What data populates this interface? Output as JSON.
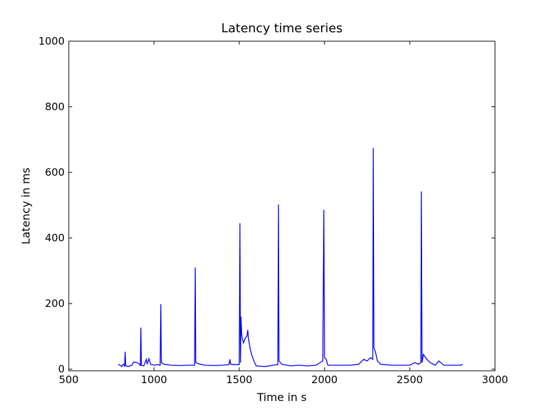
{
  "chart_data": {
    "type": "line",
    "title": "Latency time series",
    "x_label": "Time in s",
    "y_label": "Latency in ms",
    "xlim": [
      500,
      3000
    ],
    "xticks": [
      500,
      1000,
      1500,
      2000,
      2500,
      3000
    ],
    "ylim": [
      -5,
      1000
    ],
    "yticks": [
      0,
      200,
      400,
      600,
      800,
      1000
    ],
    "series": [
      {
        "color": "#0000ff",
        "x": [
          790,
          800,
          810,
          820,
          828,
          831,
          834,
          850,
          870,
          880,
          900,
          915,
          920,
          923,
          926,
          940,
          955,
          960,
          970,
          980,
          1000,
          1020,
          1036,
          1040,
          1043,
          1060,
          1100,
          1150,
          1200,
          1238,
          1242,
          1245,
          1270,
          1300,
          1350,
          1400,
          1440,
          1445,
          1450,
          1480,
          1500,
          1504,
          1507,
          1510,
          1515,
          1525,
          1535,
          1545,
          1550,
          1555,
          1565,
          1575,
          1590,
          1600,
          1650,
          1700,
          1726,
          1730,
          1733,
          1750,
          1800,
          1850,
          1900,
          1950,
          1990,
          1996,
          2000,
          2010,
          2020,
          2050,
          2100,
          2150,
          2200,
          2230,
          2250,
          2270,
          2283,
          2286,
          2290,
          2300,
          2310,
          2330,
          2400,
          2450,
          2500,
          2530,
          2550,
          2565,
          2568,
          2572,
          2580,
          2600,
          2620,
          2650,
          2670,
          2700,
          2750,
          2800,
          2810
        ],
        "values": [
          15,
          12,
          8,
          15,
          10,
          53,
          10,
          8,
          12,
          22,
          20,
          15,
          10,
          127,
          12,
          10,
          30,
          15,
          32,
          15,
          12,
          14,
          12,
          198,
          20,
          15,
          12,
          11,
          12,
          12,
          310,
          20,
          15,
          12,
          11,
          12,
          14,
          30,
          15,
          14,
          14,
          445,
          20,
          160,
          100,
          80,
          95,
          100,
          120,
          90,
          60,
          40,
          20,
          10,
          8,
          12,
          14,
          502,
          25,
          15,
          10,
          12,
          10,
          12,
          25,
          486,
          35,
          30,
          12,
          12,
          12,
          12,
          15,
          30,
          25,
          35,
          30,
          675,
          65,
          50,
          25,
          15,
          12,
          12,
          12,
          20,
          15,
          20,
          542,
          20,
          45,
          30,
          20,
          12,
          25,
          12,
          12,
          12,
          15
        ]
      }
    ]
  }
}
